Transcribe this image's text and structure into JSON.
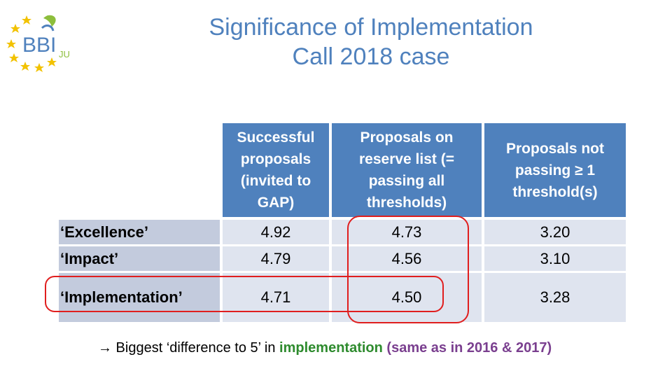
{
  "logo": {
    "text": "BBI",
    "suffix": "JU",
    "colors": {
      "star": "#f2c200",
      "text": "#4f81bd",
      "leaf": "#8dbe3c"
    }
  },
  "title": {
    "line1": "Significance of Implementation",
    "line2": "Call 2018 case"
  },
  "table": {
    "headers": [
      "Successful proposals (invited to GAP)",
      "Proposals on reserve list (= passing all thresholds)",
      "Proposals not passing ≥ 1 threshold(s)"
    ],
    "rows": [
      {
        "label": "‘Excellence’",
        "values": [
          "4.92",
          "4.73",
          "3.20"
        ]
      },
      {
        "label": "‘Impact’",
        "values": [
          "4.79",
          "4.56",
          "3.10"
        ]
      },
      {
        "label": "‘Implementation’",
        "values": [
          "4.71",
          "4.50",
          "3.28"
        ]
      }
    ]
  },
  "note": {
    "prefix": "→ Biggest ‘difference to 5’ in ",
    "highlight": "implementation",
    "suffix": "(same as in 2016 & 2017)"
  },
  "colors": {
    "header_bg": "#4f81bd",
    "row_label_bg": "#c3cbdd",
    "cell_bg": "#dfe4ef",
    "highlight_ring": "#e01e1e"
  }
}
